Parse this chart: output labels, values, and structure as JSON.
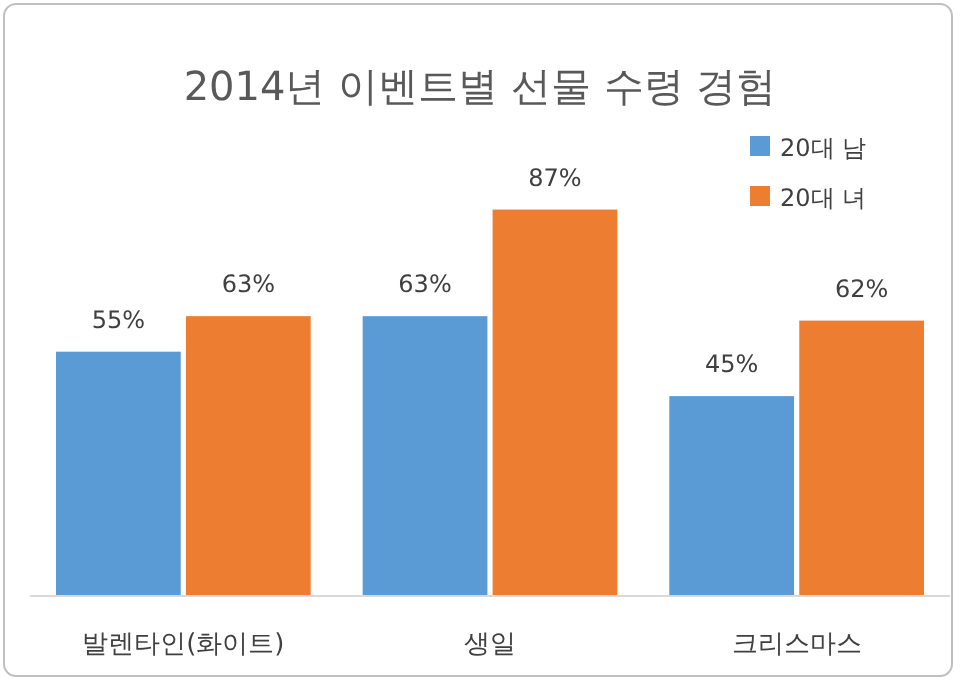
{
  "chart_data": {
    "type": "bar",
    "title": "2014년 이벤트별 선물 수령 경험",
    "categories": [
      "발렌타인(화이트)",
      "생일",
      "크리스마스"
    ],
    "relative": false,
    "series": [
      {
        "name": "20대 남",
        "color": "#5b9bd5",
        "values": [
          55,
          63,
          45
        ],
        "value_labels": [
          "55%",
          "63%",
          "45%"
        ]
      },
      {
        "name": "20대 녀",
        "color": "#ed7d31",
        "values": [
          63,
          87,
          62
        ],
        "value_labels": [
          "63%",
          "87%",
          "62%"
        ]
      }
    ],
    "legend": "top right",
    "grid": false
  }
}
